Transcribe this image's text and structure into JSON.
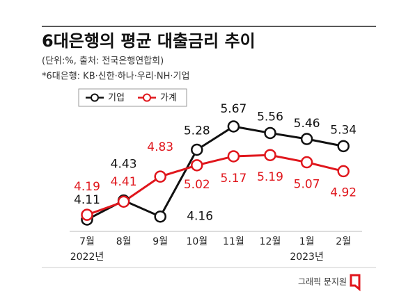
{
  "chart_data": {
    "type": "line",
    "title": "6대은행의 평균 대출금리 추이",
    "subtitle": "(단위:%, 출처: 전국은행연합회)",
    "note": "*6대은행: KB·신한·하나·우리·NH·기업",
    "credit": "그래픽 문지원",
    "categories": [
      "7월",
      "8월",
      "9월",
      "10월",
      "11월",
      "12월",
      "1월",
      "2월"
    ],
    "year_labels": [
      "2022년",
      null,
      null,
      null,
      null,
      null,
      "2023년",
      null
    ],
    "series": [
      {
        "name": "기업",
        "color": "#111111",
        "values": [
          4.11,
          4.43,
          4.16,
          5.28,
          5.67,
          5.56,
          5.46,
          5.34
        ]
      },
      {
        "name": "가계",
        "color": "#e0161c",
        "values": [
          4.19,
          4.41,
          4.83,
          5.02,
          5.17,
          5.19,
          5.07,
          4.92
        ]
      }
    ]
  }
}
